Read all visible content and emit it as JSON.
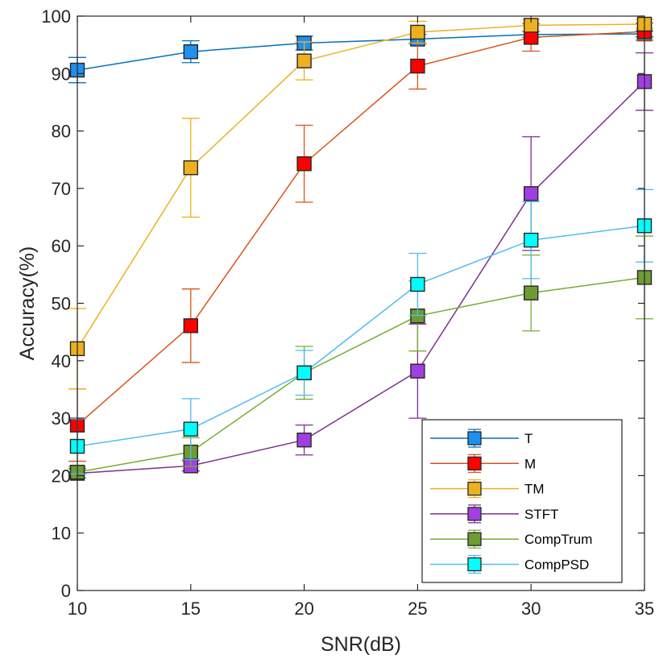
{
  "chart_data": {
    "type": "line",
    "title": "",
    "xlabel": "SNR(dB)",
    "ylabel": "Accuracy(%)",
    "x": [
      10,
      15,
      20,
      25,
      30,
      35
    ],
    "xlim": [
      10,
      35
    ],
    "ylim": [
      0,
      100
    ],
    "xticks": [
      "10",
      "15",
      "20",
      "25",
      "30",
      "35"
    ],
    "yticks": [
      "0",
      "10",
      "20",
      "30",
      "40",
      "50",
      "60",
      "70",
      "80",
      "90",
      "100"
    ],
    "grid": false,
    "legend_position": "bottom-right",
    "series": [
      {
        "name": "T",
        "color": "#0072BD",
        "marker_color": "#1E90F0",
        "values": [
          90.6,
          93.8,
          95.3,
          96.0,
          96.8,
          96.9
        ],
        "errors": [
          2.2,
          1.9,
          1.2,
          0.8,
          0.5,
          0.5
        ]
      },
      {
        "name": "M",
        "color": "#D95319",
        "marker_color": "#FF0000",
        "values": [
          28.8,
          46.1,
          74.3,
          91.3,
          96.3,
          97.3
        ],
        "errors": [
          6.3,
          6.4,
          6.7,
          4.0,
          2.4,
          1.5
        ]
      },
      {
        "name": "TM",
        "color": "#EDB120",
        "marker_color": "#EDB120",
        "values": [
          42.1,
          73.6,
          92.2,
          97.2,
          98.4,
          98.6
        ],
        "errors": [
          7.0,
          8.6,
          3.3,
          1.9,
          1.0,
          0.8
        ]
      },
      {
        "name": "STFT",
        "color": "#7E2F8E",
        "marker_color": "#A040E0",
        "values": [
          20.4,
          21.7,
          26.2,
          38.2,
          69.1,
          88.6
        ],
        "errors": [
          0.8,
          0.9,
          2.6,
          8.2,
          9.9,
          5.0
        ]
      },
      {
        "name": "CompTrum",
        "color": "#77AC30",
        "marker_color": "#6E9B34",
        "values": [
          20.6,
          24.1,
          37.9,
          47.8,
          51.8,
          54.5
        ],
        "errors": [
          1.0,
          2.5,
          4.6,
          6.1,
          6.6,
          7.2
        ]
      },
      {
        "name": "CompPSD",
        "color": "#4DBEEE",
        "marker_color": "#00FFFF",
        "values": [
          25.1,
          28.1,
          37.9,
          53.3,
          61.0,
          63.5
        ],
        "errors": [
          4.8,
          5.3,
          3.9,
          5.4,
          6.7,
          6.3
        ]
      }
    ]
  }
}
